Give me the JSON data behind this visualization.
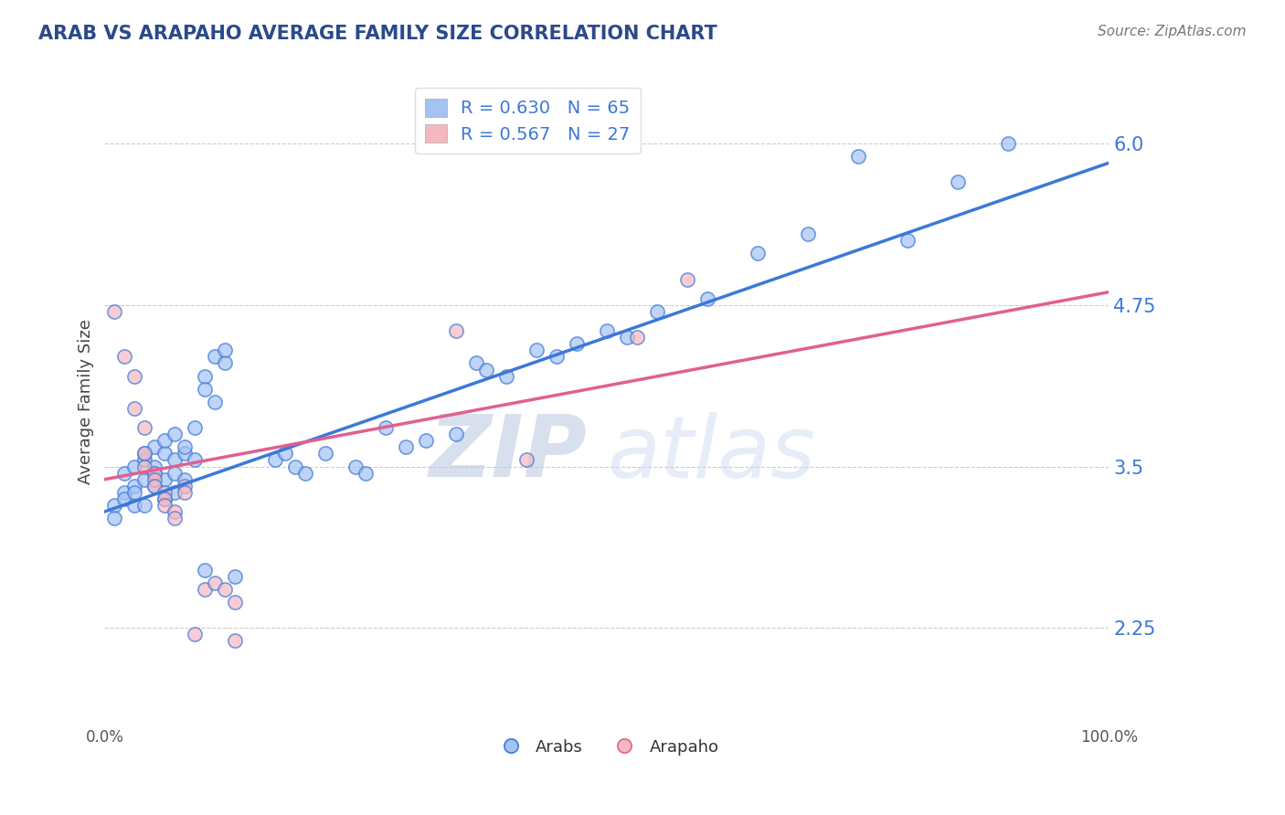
{
  "title": "ARAB VS ARAPAHO AVERAGE FAMILY SIZE CORRELATION CHART",
  "source": "Source: ZipAtlas.com",
  "xlabel": "",
  "ylabel": "Average Family Size",
  "xlim": [
    0,
    1
  ],
  "ylim": [
    1.5,
    6.5
  ],
  "yticks": [
    2.25,
    3.5,
    4.75,
    6.0
  ],
  "xticks": [
    0,
    1
  ],
  "xtick_labels": [
    "0.0%",
    "100.0%"
  ],
  "arab_color": "#a4c2f4",
  "arapaho_color": "#f4b8c1",
  "arab_line_color": "#3c78d8",
  "arapaho_line_color": "#e06090",
  "arab_R": 0.63,
  "arab_N": 65,
  "arapaho_R": 0.567,
  "arapaho_N": 27,
  "legend_text_color": "#3c78d8",
  "watermark_zip_color": "#c5cfe8",
  "watermark_atlas_color": "#c5cfe8",
  "background_color": "#ffffff",
  "grid_color": "#cccccc",
  "arab_scatter": [
    [
      0.01,
      3.2
    ],
    [
      0.01,
      3.1
    ],
    [
      0.02,
      3.3
    ],
    [
      0.02,
      3.25
    ],
    [
      0.02,
      3.45
    ],
    [
      0.03,
      3.35
    ],
    [
      0.03,
      3.2
    ],
    [
      0.03,
      3.5
    ],
    [
      0.03,
      3.3
    ],
    [
      0.04,
      3.4
    ],
    [
      0.04,
      3.55
    ],
    [
      0.04,
      3.2
    ],
    [
      0.04,
      3.6
    ],
    [
      0.05,
      3.35
    ],
    [
      0.05,
      3.45
    ],
    [
      0.05,
      3.65
    ],
    [
      0.05,
      3.5
    ],
    [
      0.06,
      3.4
    ],
    [
      0.06,
      3.6
    ],
    [
      0.06,
      3.25
    ],
    [
      0.06,
      3.7
    ],
    [
      0.07,
      3.55
    ],
    [
      0.07,
      3.75
    ],
    [
      0.07,
      3.3
    ],
    [
      0.07,
      3.45
    ],
    [
      0.08,
      3.6
    ],
    [
      0.08,
      3.4
    ],
    [
      0.08,
      3.65
    ],
    [
      0.09,
      3.55
    ],
    [
      0.09,
      3.8
    ],
    [
      0.1,
      4.2
    ],
    [
      0.1,
      4.1
    ],
    [
      0.11,
      4.0
    ],
    [
      0.11,
      4.35
    ],
    [
      0.12,
      4.3
    ],
    [
      0.12,
      4.4
    ],
    [
      0.17,
      3.55
    ],
    [
      0.18,
      3.6
    ],
    [
      0.19,
      3.5
    ],
    [
      0.2,
      3.45
    ],
    [
      0.22,
      3.6
    ],
    [
      0.25,
      3.5
    ],
    [
      0.26,
      3.45
    ],
    [
      0.28,
      3.8
    ],
    [
      0.3,
      3.65
    ],
    [
      0.32,
      3.7
    ],
    [
      0.35,
      3.75
    ],
    [
      0.37,
      4.3
    ],
    [
      0.38,
      4.25
    ],
    [
      0.4,
      4.2
    ],
    [
      0.43,
      4.4
    ],
    [
      0.45,
      4.35
    ],
    [
      0.47,
      4.45
    ],
    [
      0.5,
      4.55
    ],
    [
      0.52,
      4.5
    ],
    [
      0.55,
      4.7
    ],
    [
      0.6,
      4.8
    ],
    [
      0.65,
      5.15
    ],
    [
      0.7,
      5.3
    ],
    [
      0.75,
      5.9
    ],
    [
      0.8,
      5.25
    ],
    [
      0.85,
      5.7
    ],
    [
      0.9,
      6.0
    ],
    [
      0.1,
      2.7
    ],
    [
      0.13,
      2.65
    ]
  ],
  "arapaho_scatter": [
    [
      0.01,
      4.7
    ],
    [
      0.02,
      4.35
    ],
    [
      0.03,
      4.2
    ],
    [
      0.03,
      3.95
    ],
    [
      0.04,
      3.8
    ],
    [
      0.04,
      3.6
    ],
    [
      0.04,
      3.5
    ],
    [
      0.05,
      3.45
    ],
    [
      0.05,
      3.4
    ],
    [
      0.05,
      3.35
    ],
    [
      0.06,
      3.3
    ],
    [
      0.06,
      3.25
    ],
    [
      0.06,
      3.2
    ],
    [
      0.07,
      3.15
    ],
    [
      0.07,
      3.1
    ],
    [
      0.08,
      3.35
    ],
    [
      0.08,
      3.3
    ],
    [
      0.09,
      2.2
    ],
    [
      0.1,
      2.55
    ],
    [
      0.11,
      2.6
    ],
    [
      0.12,
      2.55
    ],
    [
      0.13,
      2.45
    ],
    [
      0.13,
      2.15
    ],
    [
      0.35,
      4.55
    ],
    [
      0.42,
      3.55
    ],
    [
      0.53,
      4.5
    ],
    [
      0.58,
      4.95
    ]
  ]
}
